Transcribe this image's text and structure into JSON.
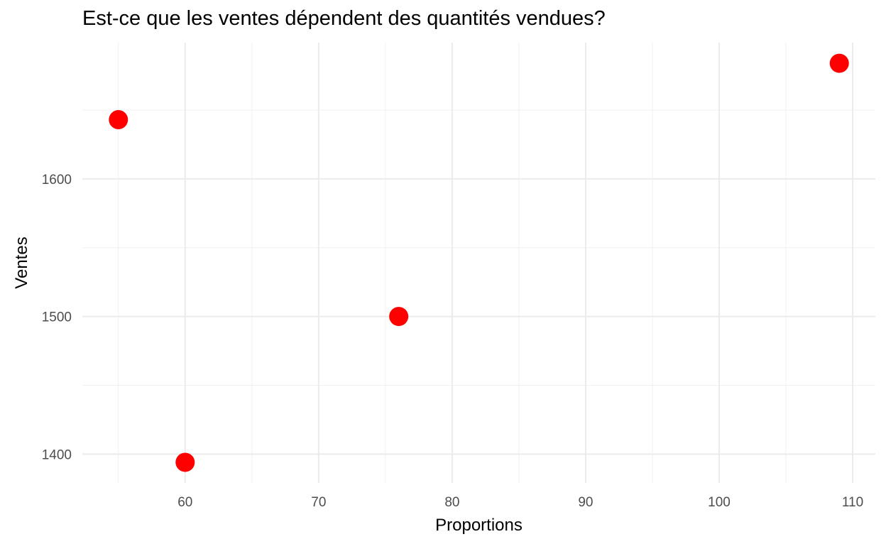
{
  "chart_data": {
    "type": "scatter",
    "title": "Est-ce que les ventes dépendent des quantités vendues?",
    "xlabel": "Proportions",
    "ylabel": "Ventes",
    "x": [
      55,
      60,
      76,
      109
    ],
    "y": [
      1643,
      1394,
      1500,
      1684
    ],
    "xlim": [
      52.3,
      111.7
    ],
    "ylim": [
      1379,
      1699
    ],
    "x_ticks": [
      60,
      70,
      80,
      90,
      100,
      110
    ],
    "x_minor_ticks": [
      55,
      65,
      75,
      85,
      95,
      105
    ],
    "y_ticks": [
      1400,
      1500,
      1600
    ],
    "y_minor_ticks": [
      1450,
      1550,
      1650
    ],
    "x_tick_labels": [
      "60",
      "70",
      "80",
      "90",
      "100",
      "110"
    ],
    "y_tick_labels": [
      "1400",
      "1500",
      "1600"
    ],
    "point_color": "#FF0000",
    "grid": true,
    "legend": "none"
  }
}
